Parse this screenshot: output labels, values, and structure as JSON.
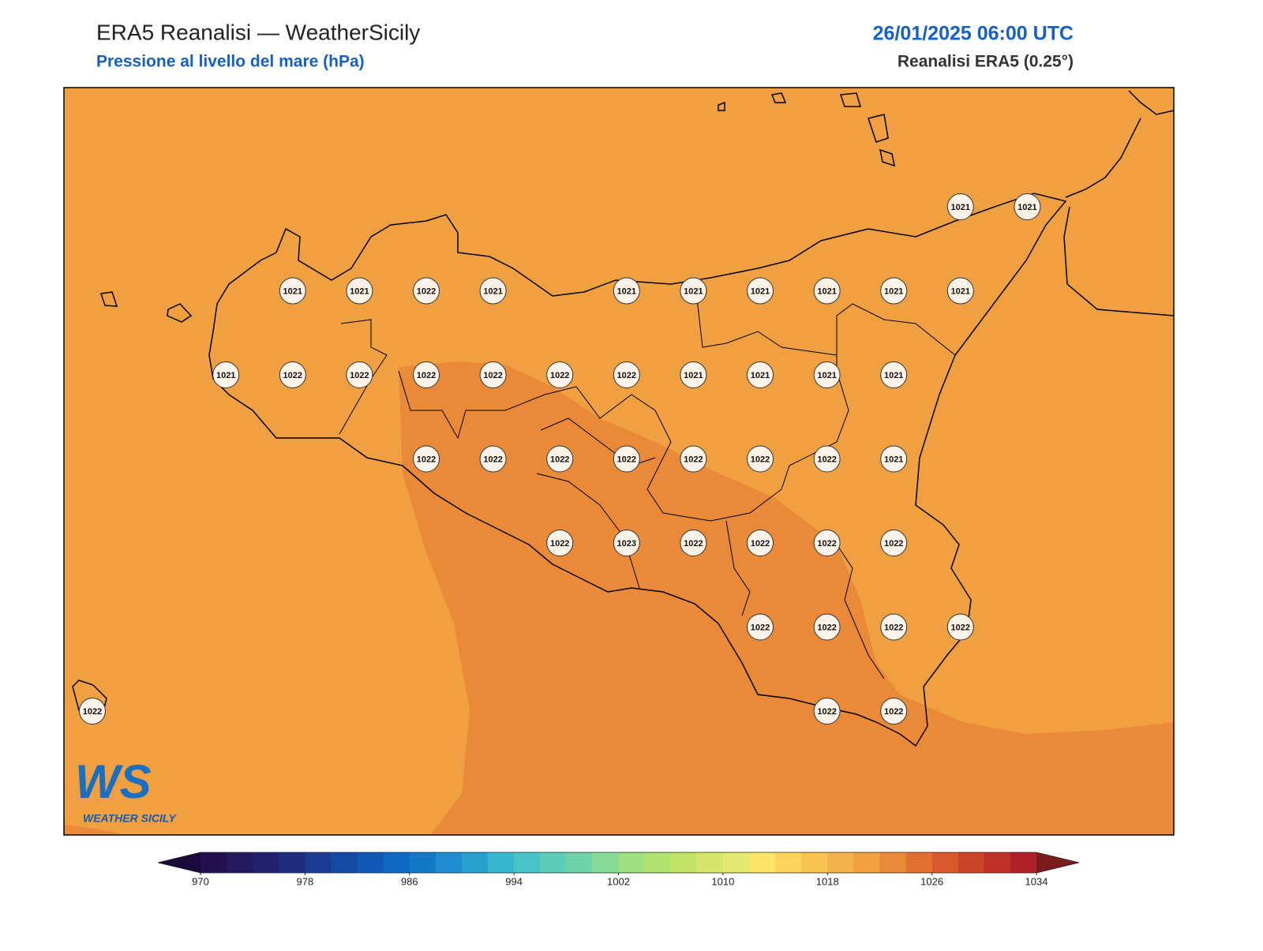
{
  "header": {
    "title": "ERA5 Reanalisi — WeatherSicily",
    "subtitle": "Pressione al livello del mare (hPa)",
    "datetime": "26/01/2025 06:00 UTC",
    "source": "Reanalisi ERA5 (0.25°)"
  },
  "map": {
    "grid": [
      [
        null,
        null,
        null,
        null,
        null,
        null,
        null,
        null,
        null,
        null,
        null,
        null,
        null,
        1021,
        1021
      ],
      [
        null,
        null,
        null,
        1021,
        1021,
        1022,
        1021,
        null,
        1021,
        1021,
        1021,
        1021,
        1021,
        1021,
        null
      ],
      [
        null,
        null,
        1021,
        1022,
        1022,
        1022,
        1022,
        1022,
        1022,
        1021,
        1021,
        1021,
        1021,
        null,
        null
      ],
      [
        null,
        null,
        null,
        null,
        null,
        1022,
        1022,
        1022,
        1022,
        1022,
        1022,
        1022,
        1021,
        null,
        null
      ],
      [
        null,
        null,
        null,
        null,
        null,
        null,
        null,
        1022,
        1023,
        1022,
        1022,
        1022,
        1022,
        null,
        null
      ],
      [
        null,
        null,
        null,
        null,
        null,
        null,
        null,
        null,
        null,
        null,
        1022,
        1022,
        1022,
        1022,
        null
      ],
      [
        1022,
        null,
        null,
        null,
        null,
        null,
        null,
        null,
        null,
        null,
        null,
        1022,
        1022,
        null,
        null
      ]
    ]
  },
  "colorbar": {
    "lim": [
      970,
      1034
    ],
    "ticks": [
      970,
      978,
      986,
      994,
      1002,
      1010,
      1018,
      1026,
      1034
    ],
    "colors": [
      "#23104f",
      "#251a5e",
      "#22226e",
      "#1e2d80",
      "#1a3b93",
      "#1549a5",
      "#1158b4",
      "#0e69c2",
      "#1279c9",
      "#1f8ccf",
      "#2aa0d0",
      "#38b6cf",
      "#4ac3c6",
      "#5ccdb9",
      "#6fd3a9",
      "#87da97",
      "#9edf84",
      "#b1e26f",
      "#c3e466",
      "#d5e66a",
      "#e4e870",
      "#fce36a",
      "#fbd35d",
      "#f7c454",
      "#f3b24d",
      "#f0a040",
      "#ea8a38",
      "#e27030",
      "#d85a2c",
      "#cc4429",
      "#c03028",
      "#b02028"
    ],
    "extend_colors": [
      "#1a0b3b",
      "#7b1c1c"
    ]
  },
  "logo": {
    "mark": "WS",
    "name": "WEATHER SICILY"
  }
}
